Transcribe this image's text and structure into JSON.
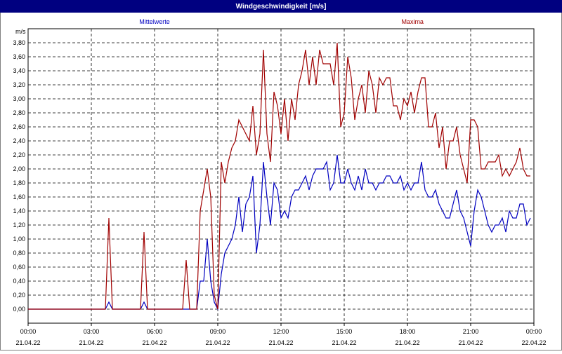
{
  "chart_data": {
    "type": "line",
    "title": "Windgeschwindigkeit [m/s]",
    "ylabel": "m/s",
    "grid": true,
    "xlim": [
      0,
      1440
    ],
    "ylim": [
      -0.2,
      4.0
    ],
    "xticks": [
      {
        "value": 0,
        "label": "00:00",
        "sublabel": "21.04.22"
      },
      {
        "value": 180,
        "label": "03:00",
        "sublabel": "21.04.22"
      },
      {
        "value": 360,
        "label": "06:00",
        "sublabel": "21.04.22"
      },
      {
        "value": 540,
        "label": "09:00",
        "sublabel": "21.04.22"
      },
      {
        "value": 720,
        "label": "12:00",
        "sublabel": "21.04.22"
      },
      {
        "value": 900,
        "label": "15:00",
        "sublabel": "21.04.22"
      },
      {
        "value": 1080,
        "label": "18:00",
        "sublabel": "21.04.22"
      },
      {
        "value": 1260,
        "label": "21:00",
        "sublabel": "21.04.22"
      },
      {
        "value": 1440,
        "label": "00:00",
        "sublabel": "22.04.22"
      }
    ],
    "yticks": [
      {
        "value": 0,
        "label": "0,00"
      },
      {
        "value": 0.2,
        "label": "0,20"
      },
      {
        "value": 0.4,
        "label": "0,40"
      },
      {
        "value": 0.6,
        "label": "0,60"
      },
      {
        "value": 0.8,
        "label": "0,80"
      },
      {
        "value": 1.0,
        "label": "1,00"
      },
      {
        "value": 1.2,
        "label": "1,20"
      },
      {
        "value": 1.4,
        "label": "1,40"
      },
      {
        "value": 1.6,
        "label": "1,60"
      },
      {
        "value": 1.8,
        "label": "1,80"
      },
      {
        "value": 2.0,
        "label": "2,00"
      },
      {
        "value": 2.2,
        "label": "2,20"
      },
      {
        "value": 2.4,
        "label": "2,40"
      },
      {
        "value": 2.6,
        "label": "2,60"
      },
      {
        "value": 2.8,
        "label": "2,80"
      },
      {
        "value": 3.0,
        "label": "3,00"
      },
      {
        "value": 3.2,
        "label": "3,20"
      },
      {
        "value": 3.4,
        "label": "3,40"
      },
      {
        "value": 3.6,
        "label": "3,60"
      },
      {
        "value": 3.8,
        "label": "3,80"
      }
    ],
    "x": [
      0,
      10,
      20,
      30,
      40,
      50,
      60,
      70,
      80,
      90,
      100,
      110,
      120,
      130,
      140,
      150,
      160,
      170,
      180,
      190,
      200,
      210,
      220,
      230,
      240,
      250,
      260,
      270,
      280,
      290,
      300,
      310,
      320,
      330,
      340,
      350,
      360,
      370,
      380,
      390,
      400,
      410,
      420,
      430,
      440,
      450,
      460,
      470,
      480,
      490,
      500,
      510,
      520,
      530,
      540,
      550,
      560,
      570,
      580,
      590,
      600,
      610,
      620,
      630,
      640,
      650,
      660,
      670,
      680,
      690,
      700,
      710,
      720,
      730,
      740,
      750,
      760,
      770,
      780,
      790,
      800,
      810,
      820,
      830,
      840,
      850,
      860,
      870,
      880,
      890,
      900,
      910,
      920,
      930,
      940,
      950,
      960,
      970,
      980,
      990,
      1000,
      1010,
      1020,
      1030,
      1040,
      1050,
      1060,
      1070,
      1080,
      1090,
      1100,
      1110,
      1120,
      1130,
      1140,
      1150,
      1160,
      1170,
      1180,
      1190,
      1200,
      1210,
      1220,
      1230,
      1240,
      1250,
      1260,
      1270,
      1280,
      1290,
      1300,
      1310,
      1320,
      1330,
      1340,
      1350,
      1360,
      1370,
      1380,
      1390,
      1400,
      1410,
      1420,
      1430
    ],
    "series": [
      {
        "name": "Mittelwerte",
        "color": "#0000c0",
        "values": [
          0,
          0,
          0,
          0,
          0,
          0,
          0,
          0,
          0,
          0,
          0,
          0,
          0,
          0,
          0,
          0,
          0,
          0,
          0,
          0,
          0,
          0,
          0,
          0.1,
          0,
          0,
          0,
          0,
          0,
          0,
          0,
          0,
          0,
          0.1,
          0,
          0,
          0,
          0,
          0,
          0,
          0,
          0,
          0,
          0,
          0,
          0,
          0,
          0,
          0,
          0.4,
          0.4,
          1.0,
          0.4,
          0.1,
          0,
          0.5,
          0.8,
          0.9,
          1.0,
          1.2,
          1.6,
          1.1,
          1.5,
          1.6,
          1.9,
          0.8,
          1.2,
          2.1,
          1.6,
          1.2,
          1.8,
          1.7,
          1.3,
          1.4,
          1.3,
          1.6,
          1.7,
          1.7,
          1.8,
          1.9,
          1.7,
          1.9,
          2.0,
          2.0,
          2.0,
          2.1,
          1.7,
          1.8,
          2.2,
          1.8,
          1.8,
          2.0,
          1.8,
          1.7,
          1.9,
          1.7,
          2.0,
          1.8,
          1.8,
          1.7,
          1.8,
          1.8,
          1.9,
          1.9,
          1.8,
          1.8,
          1.9,
          1.7,
          1.8,
          1.7,
          1.8,
          1.8,
          2.1,
          1.7,
          1.6,
          1.6,
          1.7,
          1.5,
          1.4,
          1.3,
          1.3,
          1.5,
          1.7,
          1.4,
          1.3,
          1.1,
          0.9,
          1.4,
          1.7,
          1.6,
          1.4,
          1.2,
          1.1,
          1.2,
          1.2,
          1.3,
          1.1,
          1.4,
          1.3,
          1.3,
          1.5,
          1.5,
          1.2,
          1.3
        ]
      },
      {
        "name": "Maxima",
        "color": "#a00000",
        "values": [
          0,
          0,
          0,
          0,
          0,
          0,
          0,
          0,
          0,
          0,
          0,
          0,
          0,
          0,
          0,
          0,
          0,
          0,
          0,
          0,
          0,
          0,
          0,
          1.3,
          0,
          0,
          0,
          0,
          0,
          0,
          0,
          0,
          0,
          1.1,
          0,
          0,
          0,
          0,
          0,
          0,
          0,
          0,
          0,
          0,
          0,
          0.7,
          0,
          0,
          0,
          1.4,
          1.7,
          2.0,
          1.6,
          0.2,
          0,
          2.1,
          1.8,
          2.1,
          2.3,
          2.4,
          2.7,
          2.6,
          2.5,
          2.4,
          2.9,
          2.2,
          2.5,
          3.7,
          2.5,
          2.1,
          3.1,
          2.9,
          2.5,
          3.0,
          2.4,
          3.0,
          2.7,
          3.2,
          3.4,
          3.7,
          3.2,
          3.6,
          3.2,
          3.7,
          3.5,
          3.5,
          3.5,
          3.2,
          3.8,
          2.6,
          2.8,
          3.6,
          3.3,
          2.7,
          3.0,
          3.2,
          2.8,
          3.4,
          3.2,
          2.8,
          3.3,
          3.2,
          3.3,
          3.3,
          2.9,
          2.9,
          2.7,
          3.0,
          2.9,
          3.1,
          2.8,
          3.1,
          3.3,
          3.3,
          2.6,
          2.6,
          2.8,
          2.3,
          2.6,
          2.0,
          2.4,
          2.4,
          2.6,
          2.2,
          2.0,
          1.8,
          2.7,
          2.7,
          2.6,
          2.0,
          2.0,
          2.1,
          2.1,
          2.1,
          2.2,
          1.9,
          2.0,
          1.9,
          2.0,
          2.1,
          2.3,
          2.0,
          1.9,
          1.9
        ]
      }
    ]
  }
}
